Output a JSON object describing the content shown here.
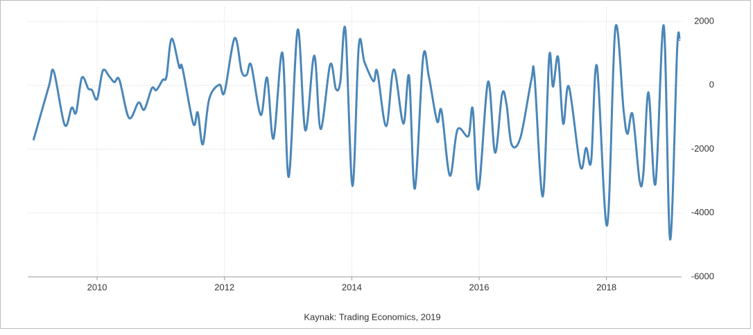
{
  "chart_data": {
    "type": "line",
    "source": "Kaynak:  Trading Economics, 2019",
    "x": [
      2009.0,
      2009.24,
      2009.32,
      2009.49,
      2009.6,
      2009.67,
      2009.76,
      2009.86,
      2009.92,
      2010.0,
      2010.09,
      2010.19,
      2010.27,
      2010.35,
      2010.5,
      2010.65,
      2010.74,
      2010.86,
      2010.93,
      2011.03,
      2011.09,
      2011.17,
      2011.29,
      2011.34,
      2011.51,
      2011.58,
      2011.66,
      2011.76,
      2011.92,
      2012.0,
      2012.16,
      2012.27,
      2012.35,
      2012.42,
      2012.57,
      2012.67,
      2012.77,
      2012.91,
      2013.01,
      2013.15,
      2013.27,
      2013.41,
      2013.51,
      2013.66,
      2013.75,
      2013.82,
      2013.9,
      2014.01,
      2014.11,
      2014.2,
      2014.34,
      2014.4,
      2014.54,
      2014.66,
      2014.81,
      2014.9,
      2014.99,
      2015.12,
      2015.21,
      2015.34,
      2015.41,
      2015.54,
      2015.66,
      2015.83,
      2015.9,
      2015.99,
      2016.14,
      2016.25,
      2016.36,
      2016.43,
      2016.51,
      2016.65,
      2016.82,
      2016.87,
      2017.0,
      2017.1,
      2017.16,
      2017.24,
      2017.32,
      2017.41,
      2017.59,
      2017.68,
      2017.76,
      2017.85,
      2018.01,
      2018.14,
      2018.27,
      2018.33,
      2018.41,
      2018.52,
      2018.58,
      2018.66,
      2018.77,
      2018.9,
      2019.0,
      2019.11,
      2019.15
    ],
    "series": [
      {
        "name": "Kaynak",
        "color": "#4a86b8",
        "values": [
          -1720,
          -40,
          430,
          -1240,
          -700,
          -850,
          240,
          -100,
          -150,
          -430,
          460,
          280,
          100,
          170,
          -1020,
          -540,
          -760,
          -90,
          -150,
          170,
          280,
          1460,
          570,
          540,
          -1200,
          -850,
          -1850,
          -430,
          20,
          -220,
          1480,
          430,
          330,
          630,
          -930,
          240,
          -1670,
          1020,
          -2870,
          1740,
          -1410,
          930,
          -1370,
          650,
          -110,
          110,
          1740,
          -3150,
          1240,
          720,
          130,
          430,
          -1280,
          500,
          -1200,
          280,
          -3240,
          870,
          280,
          -1130,
          -800,
          -2830,
          -1390,
          -1590,
          -740,
          -3260,
          110,
          -2110,
          -280,
          -590,
          -1850,
          -1630,
          170,
          280,
          -3480,
          890,
          -40,
          890,
          -1200,
          -40,
          -2540,
          -1960,
          -2370,
          610,
          -4390,
          1800,
          -800,
          -1520,
          -910,
          -2980,
          -2760,
          -220,
          -3090,
          1870,
          -4830,
          1110,
          1430
        ]
      }
    ],
    "xlim": [
      2008.91,
      2019.18
    ],
    "xticks": [
      2010,
      2012,
      2014,
      2016,
      2018
    ],
    "ylim": [
      -6000,
      2450
    ],
    "yticks": [
      2000,
      0,
      -2000,
      -4000,
      -6000
    ],
    "grid": true
  }
}
